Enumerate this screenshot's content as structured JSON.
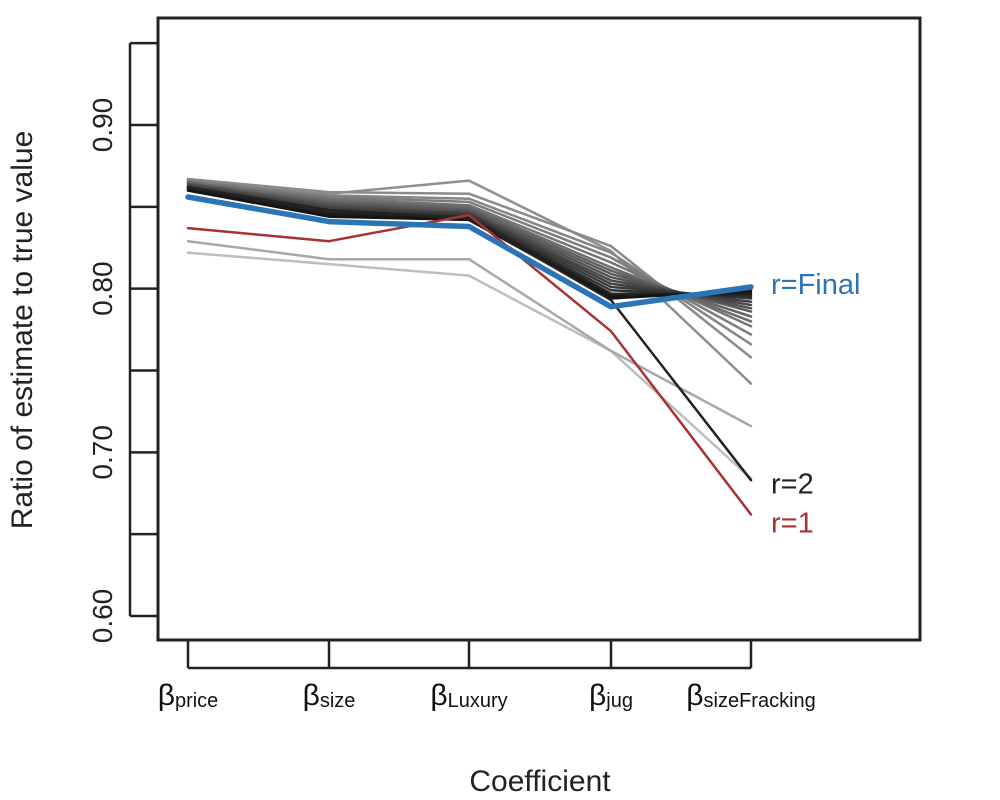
{
  "chart_data": {
    "type": "line",
    "xlabel": "Coefficient",
    "ylabel": "Ratio of estimate to true value",
    "ylim": [
      0.585,
      0.955
    ],
    "yticks": [
      0.6,
      0.65,
      0.7,
      0.75,
      0.8,
      0.85,
      0.9,
      0.95
    ],
    "ytick_labels": [
      "0.60",
      "0.70",
      "0.80",
      "0.90"
    ],
    "categories": [
      {
        "base": "β",
        "sub": "price"
      },
      {
        "base": "β",
        "sub": "size"
      },
      {
        "base": "β",
        "sub": "Luxury"
      },
      {
        "base": "β",
        "sub": "jug"
      },
      {
        "base": "β",
        "sub": "sizeFracking"
      }
    ],
    "colors": {
      "final": "#2b74b5",
      "r1": "#a83232",
      "r2": "#222222"
    },
    "series": [
      {
        "name": "r=Final",
        "color": "#2b74b5",
        "width": 5.5,
        "values": [
          0.856,
          0.841,
          0.838,
          0.789,
          0.801
        ]
      },
      {
        "name": "r=1",
        "color": "#a83232",
        "width": 2.5,
        "values": [
          0.837,
          0.829,
          0.845,
          0.774,
          0.662
        ]
      },
      {
        "name": "r=2",
        "color": "#222222",
        "width": 2.5,
        "values": [
          0.862,
          0.848,
          0.843,
          0.793,
          0.683
        ]
      },
      {
        "color": "#bdbdbd",
        "width": 2.5,
        "values": [
          0.822,
          0.815,
          0.808,
          0.762,
          0.684
        ]
      },
      {
        "color": "#a8a8a8",
        "width": 2.5,
        "values": [
          0.829,
          0.818,
          0.818,
          0.762,
          0.716
        ]
      },
      {
        "color": "#8f8f8f",
        "width": 2.5,
        "values": [
          0.865,
          0.858,
          0.866,
          0.823,
          0.742
        ]
      },
      {
        "color": "#8a8a8a",
        "width": 2.5,
        "values": [
          0.867,
          0.859,
          0.858,
          0.826,
          0.758
        ]
      },
      {
        "color": "#858585",
        "width": 2.5,
        "values": [
          0.866,
          0.857,
          0.855,
          0.822,
          0.766
        ]
      },
      {
        "color": "#7c7c7c",
        "width": 2.5,
        "values": [
          0.866,
          0.856,
          0.853,
          0.819,
          0.772
        ]
      },
      {
        "color": "#747474",
        "width": 2.5,
        "values": [
          0.865,
          0.855,
          0.851,
          0.816,
          0.777
        ]
      },
      {
        "color": "#6c6c6c",
        "width": 2.5,
        "values": [
          0.865,
          0.854,
          0.85,
          0.813,
          0.78
        ]
      },
      {
        "color": "#636363",
        "width": 2.5,
        "values": [
          0.864,
          0.853,
          0.849,
          0.811,
          0.783
        ]
      },
      {
        "color": "#5a5a5a",
        "width": 2.5,
        "values": [
          0.864,
          0.852,
          0.848,
          0.809,
          0.786
        ]
      },
      {
        "color": "#515151",
        "width": 2.5,
        "values": [
          0.864,
          0.851,
          0.847,
          0.807,
          0.788
        ]
      },
      {
        "color": "#484848",
        "width": 2.5,
        "values": [
          0.863,
          0.85,
          0.846,
          0.805,
          0.79
        ]
      },
      {
        "color": "#404040",
        "width": 2.5,
        "values": [
          0.863,
          0.849,
          0.846,
          0.803,
          0.792
        ]
      },
      {
        "color": "#383838",
        "width": 2.5,
        "values": [
          0.862,
          0.848,
          0.845,
          0.801,
          0.794
        ]
      },
      {
        "color": "#303030",
        "width": 2.5,
        "values": [
          0.862,
          0.847,
          0.844,
          0.799,
          0.795
        ]
      },
      {
        "color": "#282828",
        "width": 2.5,
        "values": [
          0.861,
          0.846,
          0.844,
          0.797,
          0.796
        ]
      },
      {
        "color": "#202020",
        "width": 2.5,
        "values": [
          0.861,
          0.846,
          0.843,
          0.796,
          0.797
        ]
      },
      {
        "color": "#1a1a1a",
        "width": 2.5,
        "values": [
          0.86,
          0.845,
          0.842,
          0.795,
          0.798
        ]
      },
      {
        "color": "#141414",
        "width": 2.5,
        "values": [
          0.86,
          0.844,
          0.842,
          0.794,
          0.799
        ]
      }
    ],
    "annotations": [
      {
        "text": "r=Final",
        "color": "#2b74b5",
        "anchor_value": 0.803
      },
      {
        "text": "r=2",
        "color": "#222222",
        "anchor_value": 0.681
      },
      {
        "text": "r=1",
        "color": "#a83232",
        "anchor_value": 0.657
      }
    ]
  }
}
